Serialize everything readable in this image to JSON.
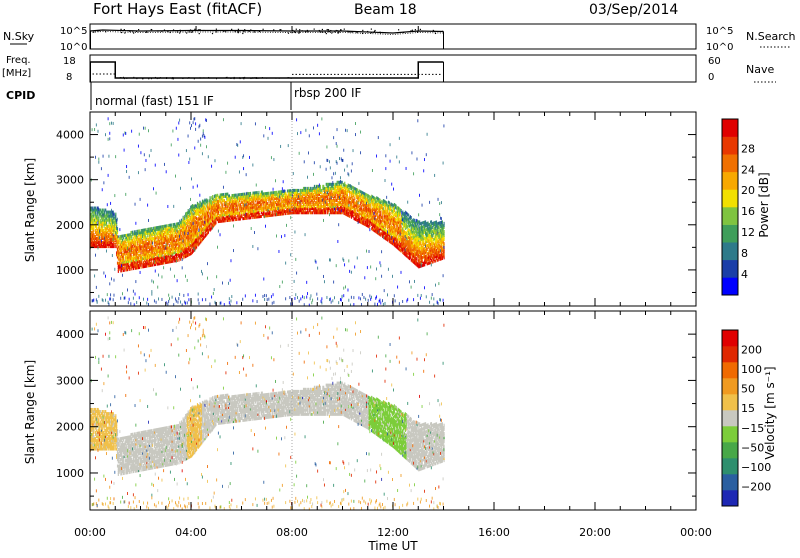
{
  "header": {
    "station": "Fort Hays East (fitACF)",
    "beam": "Beam 18",
    "date": "03/Sep/2014"
  },
  "strips": {
    "nsky_label": "N.Sky",
    "nsky_ticks": [
      "10^5",
      "10^0"
    ],
    "nsearch_label": "N.Search",
    "freq_label": "Freq.",
    "freq_unit": "[MHz]",
    "freq_ticks": [
      "18",
      "8"
    ],
    "nave_label": "Nave",
    "nave_ticks": [
      "60",
      "0"
    ],
    "cpid_label": "CPID",
    "cpid_segments": [
      "normal (fast) 151 IF",
      "rbsp 200 IF"
    ]
  },
  "axes": {
    "xlabel": "Time UT",
    "ylabel": "Slant Range [km]",
    "xticks": [
      "00:00",
      "04:00",
      "08:00",
      "12:00",
      "16:00",
      "20:00",
      "00:00"
    ],
    "yticks": [
      "1000",
      "2000",
      "3000",
      "4000"
    ]
  },
  "colorbars": {
    "power": {
      "label": "Power [dB]",
      "ticks": [
        "4",
        "8",
        "12",
        "16",
        "20",
        "24",
        "28"
      ],
      "colors": [
        "#0000ff",
        "#1a3ea8",
        "#2e7a8a",
        "#3f9e5a",
        "#7fc440",
        "#f2e000",
        "#f7a800",
        "#f07000",
        "#e83800",
        "#e00000"
      ]
    },
    "velocity": {
      "label": "Velocity [m s⁻¹]",
      "ticks": [
        "200",
        "100",
        "50",
        "15",
        "−15",
        "−50",
        "−100",
        "−200"
      ],
      "colors": [
        "#1e28b4",
        "#2a5fa0",
        "#2e8f6e",
        "#48a848",
        "#7ccd3a",
        "#c8c8c0",
        "#f0c04a",
        "#f09a20",
        "#f06a00",
        "#e02800",
        "#e00000"
      ]
    }
  },
  "chart_data": [
    {
      "type": "heatmap",
      "name": "power",
      "x_range_hours": [
        0,
        24
      ],
      "y_range_km": [
        200,
        4500
      ],
      "scatter_band_km": [
        {
          "t": 0.0,
          "lo": 1550,
          "hi": 2450
        },
        {
          "t": 1.0,
          "lo": 1550,
          "hi": 2300
        },
        {
          "t": 1.1,
          "lo": 1000,
          "hi": 1800
        },
        {
          "t": 3.5,
          "lo": 1250,
          "hi": 2100
        },
        {
          "t": 4.0,
          "lo": 1400,
          "hi": 2450
        },
        {
          "t": 5.0,
          "lo": 2100,
          "hi": 2700
        },
        {
          "t": 8.0,
          "lo": 2300,
          "hi": 2800
        },
        {
          "t": 10.0,
          "lo": 2300,
          "hi": 3000
        },
        {
          "t": 11.0,
          "lo": 2000,
          "hi": 2700
        },
        {
          "t": 12.0,
          "lo": 1600,
          "hi": 2500
        },
        {
          "t": 13.0,
          "lo": 1100,
          "hi": 2100
        },
        {
          "t": 14.0,
          "lo": 1300,
          "hi": 2100
        }
      ],
      "value_range_db": [
        0,
        32
      ]
    },
    {
      "type": "heatmap",
      "name": "velocity",
      "x_range_hours": [
        0,
        24
      ],
      "y_range_km": [
        200,
        4500
      ],
      "value_range_ms": [
        -250,
        250
      ]
    },
    {
      "type": "line",
      "name": "frequency",
      "x": [
        0,
        1.0,
        1.0,
        13.0,
        13.0,
        14.0
      ],
      "y": [
        17,
        17,
        9,
        9,
        17,
        17
      ],
      "ylim": [
        8,
        18
      ]
    },
    {
      "type": "line",
      "name": "nsky",
      "ylim_log10": [
        0,
        5
      ],
      "x": [
        0,
        0.5,
        2,
        4,
        6,
        8,
        10,
        12,
        13,
        14
      ],
      "y_log10": [
        3.6,
        3.8,
        3.6,
        3.7,
        3.7,
        3.6,
        3.6,
        3.2,
        3.6,
        3.5
      ]
    }
  ]
}
